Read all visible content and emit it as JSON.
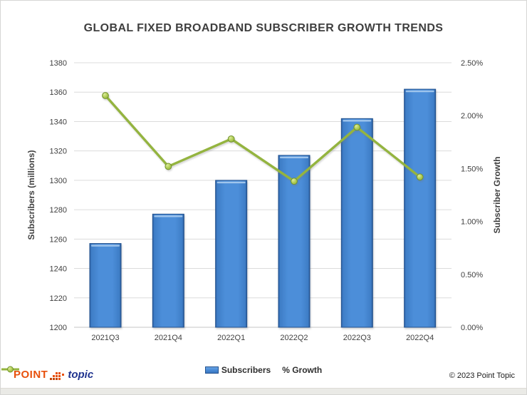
{
  "page": {
    "footer": {
      "logo_point": "POINT",
      "logo_topic": "topic",
      "copyright": "© 2023 Point Topic"
    }
  },
  "legend": {
    "subscribers_label": "Subscribers",
    "growth_label": "% Growth"
  },
  "colors": {
    "bar_fill": "#4C8ED9",
    "bar_edge": "#24538F",
    "bar_highlight": "#A9CBEE",
    "line": "#94B43F",
    "marker_fill": "#AECB52",
    "marker_edge": "#71922F",
    "grid": "#DCDCDC",
    "axis_line": "#C4C4C4",
    "text": "#3F3F3F",
    "logo_orange": "#E8500C",
    "logo_blue": "#1F338F"
  },
  "chart_data": {
    "type": "bar",
    "subtype": "combo bar+line, dual axis",
    "title": "GLOBAL FIXED BROADBAND SUBSCRIBER GROWTH TRENDS",
    "categories": [
      "2021Q3",
      "2021Q4",
      "2022Q1",
      "2022Q2",
      "2022Q3",
      "2022Q4"
    ],
    "series": [
      {
        "name": "Subscribers",
        "type": "bar",
        "axis": "left",
        "values": [
          1257,
          1277,
          1300,
          1317,
          1342,
          1362
        ]
      },
      {
        "name": "% Growth",
        "type": "line",
        "axis": "right",
        "values": [
          2.19,
          1.52,
          1.78,
          1.38,
          1.89,
          1.42
        ]
      }
    ],
    "left_axis": {
      "title": "Subscribers (millions)",
      "min": 1200,
      "max": 1380,
      "step": 20,
      "ticks": [
        "1380",
        "1360",
        "1340",
        "1320",
        "1300",
        "1280",
        "1260",
        "1240",
        "1220",
        "1200"
      ]
    },
    "right_axis": {
      "title": "Subscriber Growth",
      "min": 0,
      "max": 2.5,
      "step": 0.5,
      "ticks": [
        "2.50%",
        "2.00%",
        "1.50%",
        "1.00%",
        "0.50%",
        "0.00%"
      ]
    },
    "grid": true,
    "legend_position": "bottom"
  }
}
